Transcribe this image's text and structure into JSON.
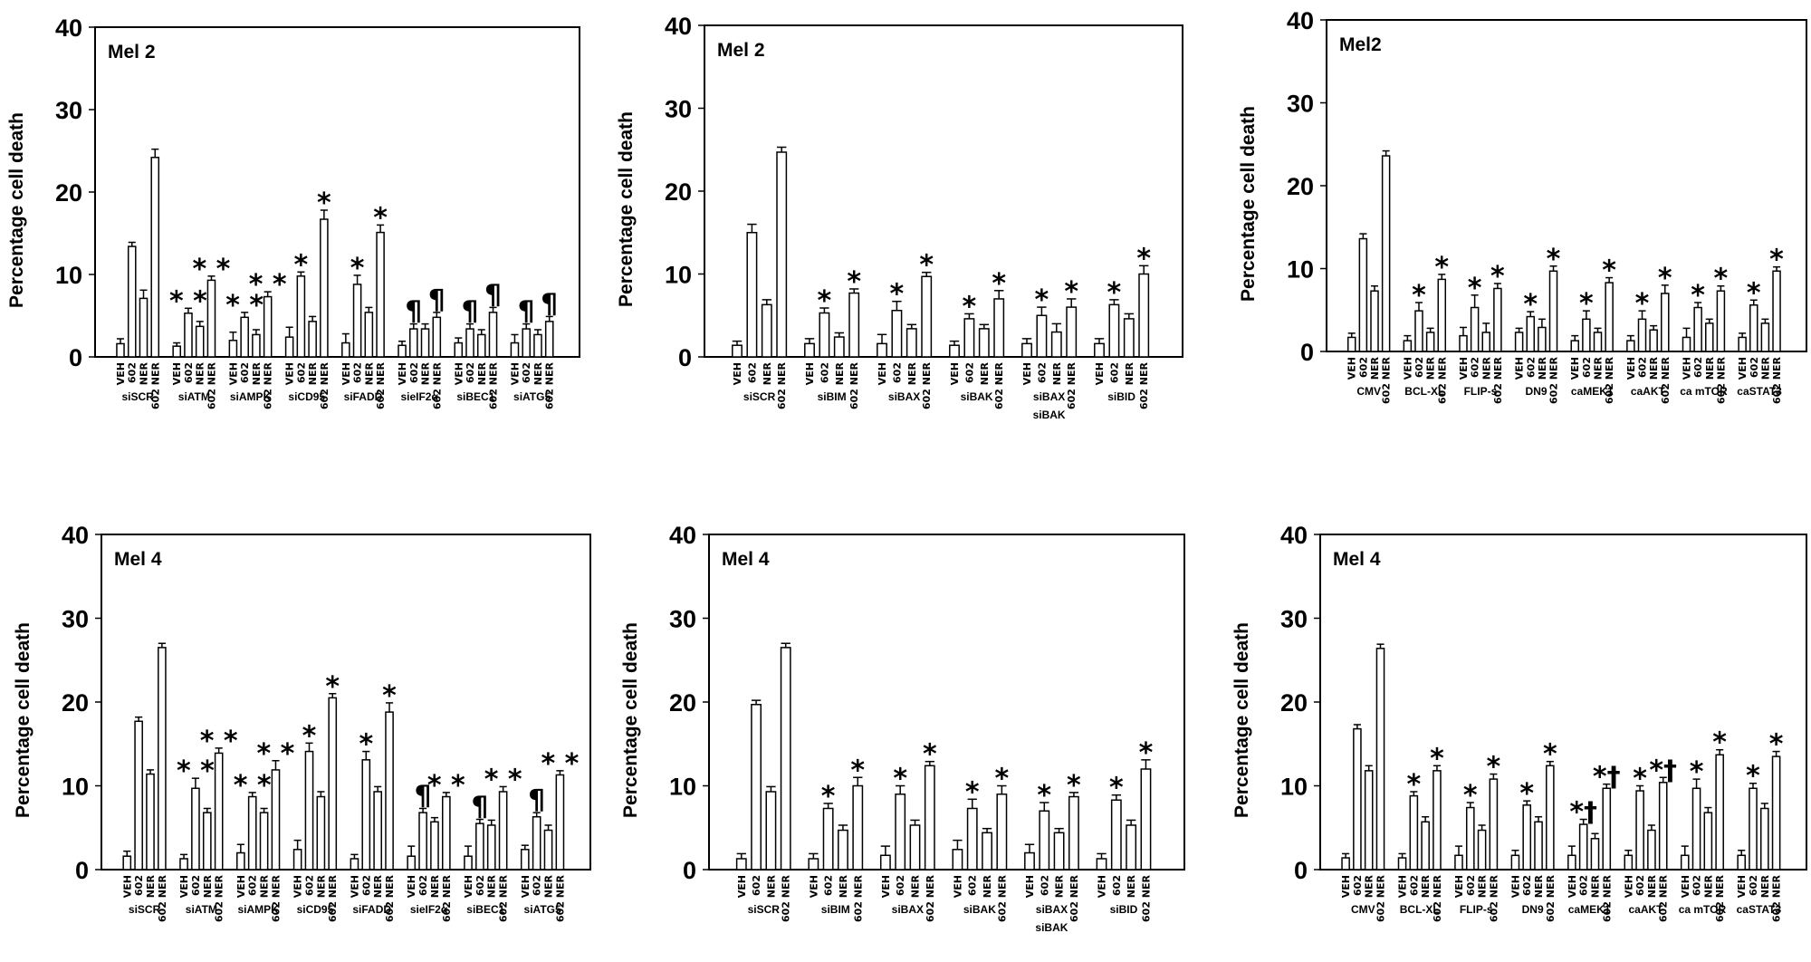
{
  "chart_data": [
    {
      "type": "bar",
      "title": "Mel 2",
      "ylabel": "Percentage cell death",
      "ylim": [
        0,
        40
      ],
      "yticks": [
        0,
        10,
        20,
        30,
        40
      ],
      "bar_labels": [
        "VEH",
        "602",
        "NER",
        "602 NER"
      ],
      "groups": [
        {
          "label": [
            "siSCR"
          ],
          "values": [
            1.6,
            13.4,
            7.1,
            24.2
          ],
          "errors": [
            0.6,
            0.5,
            1.0,
            1.0
          ],
          "annotations": [
            "",
            "",
            "",
            ""
          ]
        },
        {
          "label": [
            "siATM"
          ],
          "values": [
            1.3,
            5.3,
            3.7,
            9.3
          ],
          "errors": [
            0.4,
            0.6,
            0.6,
            0.5
          ],
          "annotations": [
            "",
            "**",
            "",
            "**"
          ]
        },
        {
          "label": [
            "siAMPK"
          ],
          "values": [
            2.0,
            4.8,
            2.7,
            7.3
          ],
          "errors": [
            1.0,
            0.6,
            0.6,
            0.6
          ],
          "annotations": [
            "",
            "**",
            "",
            "**"
          ]
        },
        {
          "label": [
            "siCD95"
          ],
          "values": [
            2.4,
            9.8,
            4.3,
            16.7
          ],
          "errors": [
            1.2,
            0.5,
            0.6,
            1.1
          ],
          "annotations": [
            "",
            "*",
            "",
            "*"
          ]
        },
        {
          "label": [
            "siFADD"
          ],
          "values": [
            1.7,
            8.8,
            5.4,
            15.1
          ],
          "errors": [
            1.1,
            1.1,
            0.6,
            0.9
          ],
          "annotations": [
            "",
            "*",
            "",
            "*"
          ]
        },
        {
          "label": [
            "sieIF2α"
          ],
          "values": [
            1.4,
            3.4,
            3.4,
            4.8
          ],
          "errors": [
            0.5,
            0.6,
            0.6,
            0.6
          ],
          "annotations": [
            "",
            "¶",
            "",
            "¶"
          ]
        },
        {
          "label": [
            "siBEC1"
          ],
          "values": [
            1.7,
            3.4,
            2.7,
            5.4
          ],
          "errors": [
            0.6,
            0.6,
            0.6,
            0.6
          ],
          "annotations": [
            "",
            "¶",
            "",
            "¶"
          ]
        },
        {
          "label": [
            "siATG5"
          ],
          "values": [
            1.7,
            3.4,
            2.7,
            4.3
          ],
          "errors": [
            1.0,
            0.6,
            0.6,
            0.6
          ],
          "annotations": [
            "",
            "¶",
            "",
            "¶"
          ]
        }
      ]
    },
    {
      "type": "bar",
      "title": "Mel 2",
      "ylabel": "Percentage cell death",
      "ylim": [
        0,
        40
      ],
      "yticks": [
        0,
        10,
        20,
        30,
        40
      ],
      "bar_labels": [
        "VEH",
        "602",
        "NER",
        "602 NER"
      ],
      "groups": [
        {
          "label": [
            "siSCR"
          ],
          "values": [
            1.4,
            15.0,
            6.3,
            24.7
          ],
          "errors": [
            0.5,
            1.0,
            0.6,
            0.6
          ],
          "annotations": [
            "",
            "",
            "",
            ""
          ]
        },
        {
          "label": [
            "siBIM"
          ],
          "values": [
            1.6,
            5.3,
            2.4,
            7.7
          ],
          "errors": [
            0.6,
            0.6,
            0.5,
            0.5
          ],
          "annotations": [
            "",
            "*",
            "",
            "*"
          ]
        },
        {
          "label": [
            "siBAX"
          ],
          "values": [
            1.6,
            5.6,
            3.4,
            9.7
          ],
          "errors": [
            1.1,
            1.1,
            0.5,
            0.5
          ],
          "annotations": [
            "",
            "*",
            "",
            "*"
          ]
        },
        {
          "label": [
            "siBAK"
          ],
          "values": [
            1.4,
            4.6,
            3.4,
            7.0
          ],
          "errors": [
            0.5,
            0.6,
            0.5,
            1.0
          ],
          "annotations": [
            "",
            "*",
            "",
            "*"
          ]
        },
        {
          "label": [
            "siBAX",
            "siBAK"
          ],
          "values": [
            1.6,
            5.0,
            3.0,
            6.0
          ],
          "errors": [
            0.6,
            1.0,
            1.0,
            1.0
          ],
          "annotations": [
            "",
            "*",
            "",
            "*"
          ]
        },
        {
          "label": [
            "siBID"
          ],
          "values": [
            1.6,
            6.3,
            4.6,
            10.0
          ],
          "errors": [
            0.6,
            0.6,
            0.6,
            1.0
          ],
          "annotations": [
            "",
            "*",
            "",
            "*"
          ]
        }
      ]
    },
    {
      "type": "bar",
      "title": "Mel2",
      "ylabel": "Percentage cell death",
      "ylim": [
        0,
        40
      ],
      "yticks": [
        0,
        10,
        20,
        30,
        40
      ],
      "bar_labels": [
        "VEH",
        "602",
        "NER",
        "602 NER"
      ],
      "groups": [
        {
          "label": [
            "CMV"
          ],
          "values": [
            1.7,
            13.6,
            7.3,
            23.6
          ],
          "errors": [
            0.5,
            0.6,
            0.6,
            0.6
          ],
          "annotations": [
            "",
            "",
            "",
            ""
          ]
        },
        {
          "label": [
            "BCL-XL"
          ],
          "values": [
            1.3,
            4.9,
            2.3,
            8.7
          ],
          "errors": [
            0.6,
            1.0,
            0.5,
            0.6
          ],
          "annotations": [
            "",
            "*",
            "",
            "*"
          ]
        },
        {
          "label": [
            "FLIP-s"
          ],
          "values": [
            1.9,
            5.3,
            2.3,
            7.6
          ],
          "errors": [
            1.0,
            1.5,
            1.1,
            0.6
          ],
          "annotations": [
            "",
            "*",
            "",
            "*"
          ]
        },
        {
          "label": [
            "DN9"
          ],
          "values": [
            2.3,
            4.2,
            2.9,
            9.7
          ],
          "errors": [
            0.5,
            0.6,
            1.0,
            0.6
          ],
          "annotations": [
            "",
            "*",
            "",
            "*"
          ]
        },
        {
          "label": [
            "caMEK1"
          ],
          "values": [
            1.3,
            3.9,
            2.3,
            8.3
          ],
          "errors": [
            0.6,
            1.0,
            0.5,
            0.6
          ],
          "annotations": [
            "",
            "*",
            "",
            "*"
          ]
        },
        {
          "label": [
            "caAKT"
          ],
          "values": [
            1.3,
            3.9,
            2.6,
            7.0
          ],
          "errors": [
            0.6,
            1.0,
            0.5,
            1.0
          ],
          "annotations": [
            "",
            "*",
            "",
            "*"
          ]
        },
        {
          "label": [
            "ca mTOR"
          ],
          "values": [
            1.7,
            5.3,
            3.4,
            7.3
          ],
          "errors": [
            1.1,
            0.6,
            0.5,
            0.6
          ],
          "annotations": [
            "",
            "*",
            "",
            "*"
          ]
        },
        {
          "label": [
            "caSTAT3"
          ],
          "values": [
            1.7,
            5.6,
            3.4,
            9.7
          ],
          "errors": [
            0.5,
            0.6,
            0.5,
            0.5
          ],
          "annotations": [
            "",
            "*",
            "",
            "*"
          ]
        }
      ]
    },
    {
      "type": "bar",
      "title": "Mel 4",
      "ylabel": "Percentage cell death",
      "ylim": [
        0,
        40
      ],
      "yticks": [
        0,
        10,
        20,
        30,
        40
      ],
      "bar_labels": [
        "VEH",
        "602",
        "NER",
        "602 NER"
      ],
      "groups": [
        {
          "label": [
            "siSCR"
          ],
          "values": [
            1.6,
            17.7,
            11.4,
            26.5
          ],
          "errors": [
            0.6,
            0.5,
            0.5,
            0.5
          ],
          "annotations": [
            "",
            "",
            "",
            ""
          ]
        },
        {
          "label": [
            "siATM"
          ],
          "values": [
            1.3,
            9.7,
            6.8,
            13.9
          ],
          "errors": [
            0.5,
            1.2,
            0.5,
            0.6
          ],
          "annotations": [
            "",
            "**",
            "",
            "**"
          ]
        },
        {
          "label": [
            "siAMPK"
          ],
          "values": [
            2.0,
            8.7,
            6.8,
            11.9
          ],
          "errors": [
            1.0,
            0.5,
            0.5,
            1.1
          ],
          "annotations": [
            "",
            "**",
            "",
            "**"
          ]
        },
        {
          "label": [
            "siCD95"
          ],
          "values": [
            2.4,
            14.1,
            8.7,
            20.5
          ],
          "errors": [
            1.1,
            1.0,
            0.6,
            0.5
          ],
          "annotations": [
            "",
            "*",
            "",
            "*"
          ]
        },
        {
          "label": [
            "siFADD"
          ],
          "values": [
            1.3,
            13.1,
            9.3,
            18.8
          ],
          "errors": [
            0.5,
            1.0,
            0.6,
            1.1
          ],
          "annotations": [
            "",
            "*",
            "",
            "*"
          ]
        },
        {
          "label": [
            "sieIF2α"
          ],
          "values": [
            1.6,
            6.8,
            5.7,
            8.7
          ],
          "errors": [
            1.2,
            0.5,
            0.5,
            0.5
          ],
          "annotations": [
            "",
            "¶",
            "",
            "**"
          ]
        },
        {
          "label": [
            "siBEC1"
          ],
          "values": [
            1.6,
            5.5,
            5.3,
            9.3
          ],
          "errors": [
            1.2,
            0.5,
            0.6,
            0.6
          ],
          "annotations": [
            "",
            "¶",
            "",
            "**"
          ]
        },
        {
          "label": [
            "siATG5"
          ],
          "values": [
            2.4,
            6.3,
            4.7,
            11.3
          ],
          "errors": [
            0.5,
            0.5,
            0.6,
            0.5
          ],
          "annotations": [
            "",
            "¶",
            "",
            "**"
          ]
        }
      ]
    },
    {
      "type": "bar",
      "title": "Mel 4",
      "ylabel": "Percentage cell death",
      "ylim": [
        0,
        40
      ],
      "yticks": [
        0,
        10,
        20,
        30,
        40
      ],
      "bar_labels": [
        "VEH",
        "602",
        "NER",
        "602 NER"
      ],
      "groups": [
        {
          "label": [
            "siSCR"
          ],
          "values": [
            1.3,
            19.7,
            9.3,
            26.5
          ],
          "errors": [
            0.6,
            0.5,
            0.6,
            0.5
          ],
          "annotations": [
            "",
            "",
            "",
            ""
          ]
        },
        {
          "label": [
            "siBIM"
          ],
          "values": [
            1.3,
            7.3,
            4.7,
            10.0
          ],
          "errors": [
            0.6,
            0.6,
            0.6,
            1.0
          ],
          "annotations": [
            "",
            "*",
            "",
            "*"
          ]
        },
        {
          "label": [
            "siBAX"
          ],
          "values": [
            1.7,
            9.0,
            5.3,
            12.4
          ],
          "errors": [
            1.1,
            1.0,
            0.6,
            0.5
          ],
          "annotations": [
            "",
            "*",
            "",
            "*"
          ]
        },
        {
          "label": [
            "siBAK"
          ],
          "values": [
            2.4,
            7.3,
            4.4,
            9.0
          ],
          "errors": [
            1.1,
            1.1,
            0.5,
            1.0
          ],
          "annotations": [
            "",
            "*",
            "",
            "*"
          ]
        },
        {
          "label": [
            "siBAX",
            "siBAK"
          ],
          "values": [
            2.0,
            7.0,
            4.4,
            8.7
          ],
          "errors": [
            1.0,
            1.0,
            0.5,
            0.5
          ],
          "annotations": [
            "",
            "*",
            "",
            "*"
          ]
        },
        {
          "label": [
            "siBID"
          ],
          "values": [
            1.3,
            8.3,
            5.3,
            12.0
          ],
          "errors": [
            0.6,
            0.6,
            0.6,
            1.1
          ],
          "annotations": [
            "",
            "*",
            "",
            "*"
          ]
        }
      ]
    },
    {
      "type": "bar",
      "title": "Mel 4",
      "ylabel": "Percentage cell death",
      "ylim": [
        0,
        40
      ],
      "yticks": [
        0,
        10,
        20,
        30,
        40
      ],
      "bar_labels": [
        "VEH",
        "602",
        "NER",
        "602 NER"
      ],
      "groups": [
        {
          "label": [
            "CMV"
          ],
          "values": [
            1.4,
            16.8,
            11.8,
            26.4
          ],
          "errors": [
            0.5,
            0.5,
            0.6,
            0.5
          ],
          "annotations": [
            "",
            "",
            "",
            ""
          ]
        },
        {
          "label": [
            "BCL-XL"
          ],
          "values": [
            1.4,
            8.8,
            5.7,
            11.8
          ],
          "errors": [
            0.5,
            0.5,
            0.6,
            0.6
          ],
          "annotations": [
            "",
            "*",
            "",
            "*"
          ]
        },
        {
          "label": [
            "FLIP-s"
          ],
          "values": [
            1.7,
            7.4,
            4.7,
            10.8
          ],
          "errors": [
            1.1,
            0.6,
            0.6,
            0.6
          ],
          "annotations": [
            "",
            "*",
            "",
            "*"
          ]
        },
        {
          "label": [
            "DN9"
          ],
          "values": [
            1.7,
            7.7,
            5.7,
            12.4
          ],
          "errors": [
            0.6,
            0.5,
            0.6,
            0.5
          ],
          "annotations": [
            "",
            "*",
            "",
            "*"
          ]
        },
        {
          "label": [
            "caMEK1"
          ],
          "values": [
            1.7,
            5.4,
            3.7,
            9.7
          ],
          "errors": [
            1.1,
            0.6,
            0.6,
            0.5
          ],
          "annotations": [
            "",
            "*†",
            "",
            "*†"
          ]
        },
        {
          "label": [
            "caAKT"
          ],
          "values": [
            1.7,
            9.4,
            4.7,
            10.4
          ],
          "errors": [
            0.6,
            0.6,
            0.6,
            0.6
          ],
          "annotations": [
            "",
            "*",
            "",
            "*†"
          ]
        },
        {
          "label": [
            "ca mTOR"
          ],
          "values": [
            1.7,
            9.7,
            6.8,
            13.7
          ],
          "errors": [
            1.1,
            1.1,
            0.6,
            0.6
          ],
          "annotations": [
            "",
            "*",
            "",
            "*"
          ]
        },
        {
          "label": [
            "caSTAT3"
          ],
          "values": [
            1.7,
            9.7,
            7.3,
            13.5
          ],
          "errors": [
            0.6,
            0.6,
            0.6,
            0.6
          ],
          "annotations": [
            "",
            "*",
            "",
            "*"
          ]
        }
      ]
    }
  ]
}
